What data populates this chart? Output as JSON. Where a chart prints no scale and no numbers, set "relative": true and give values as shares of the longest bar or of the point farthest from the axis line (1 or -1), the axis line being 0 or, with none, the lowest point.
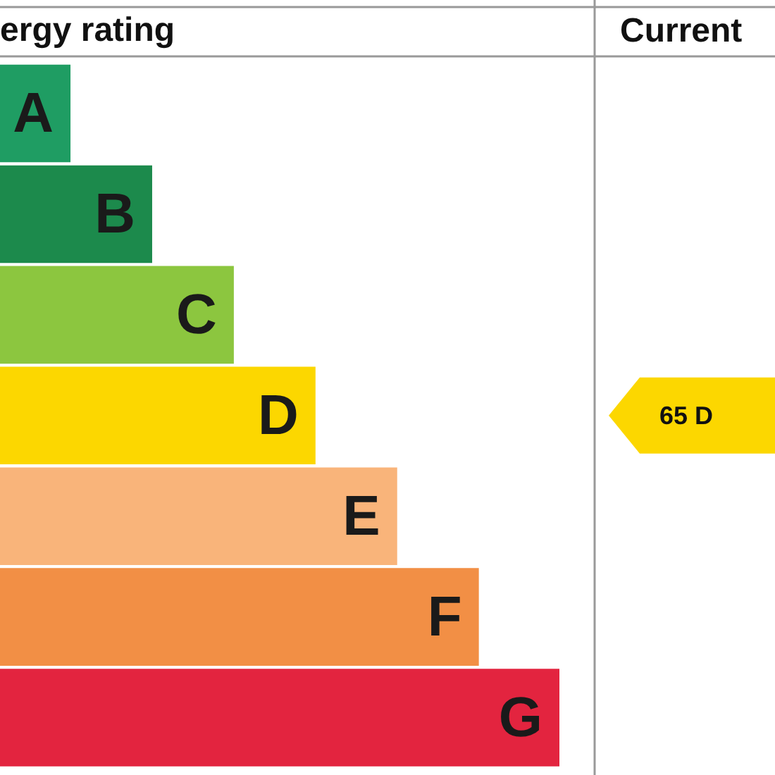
{
  "chart_data": {
    "type": "bar",
    "orientation": "horizontal",
    "relative": true,
    "title": "ergy rating",
    "categories": [
      "A",
      "B",
      "C",
      "D",
      "E",
      "F",
      "G"
    ],
    "values": [
      0.126,
      0.272,
      0.418,
      0.564,
      0.71,
      0.856,
      1
    ],
    "colors": [
      "#1f9d63",
      "#1c8a4c",
      "#8cc63f",
      "#fcd700",
      "#f9b47a",
      "#f28f45",
      "#e3243f"
    ],
    "annotations": [
      "Current",
      "65 D"
    ],
    "legend": false
  }
}
